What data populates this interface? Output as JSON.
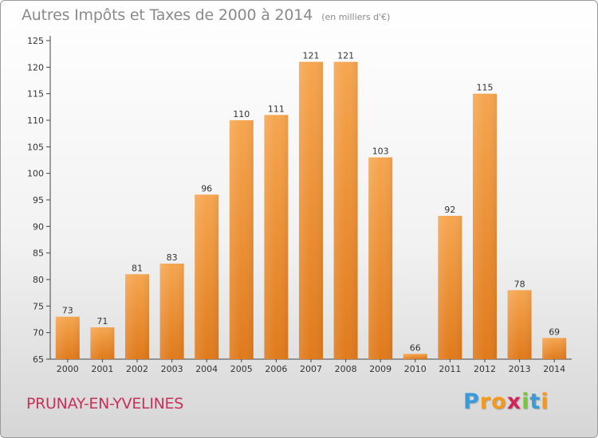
{
  "header": {
    "title": "Autres Impôts et Taxes de 2000 à 2014",
    "subtitle": "(en milliers d'€)"
  },
  "footer": {
    "commune": "PRUNAY-EN-YVELINES",
    "logo": {
      "letters": [
        "P",
        "r",
        "o",
        "x",
        "i",
        "t",
        "i"
      ],
      "colors": [
        "#3a9bd8",
        "#f39a1e",
        "#f39a1e",
        "#d4225a",
        "#7cc243",
        "#3a9bd8",
        "#f39a1e"
      ]
    }
  },
  "chart_data": {
    "type": "bar",
    "categories": [
      "2000",
      "2001",
      "2002",
      "2003",
      "2004",
      "2005",
      "2006",
      "2007",
      "2008",
      "2009",
      "2010",
      "2011",
      "2012",
      "2013",
      "2014"
    ],
    "values": [
      73,
      71,
      81,
      83,
      96,
      110,
      111,
      121,
      121,
      103,
      66,
      92,
      115,
      78,
      69
    ],
    "ylim": [
      65,
      125
    ],
    "yticks": [
      65,
      70,
      75,
      80,
      85,
      90,
      95,
      100,
      105,
      110,
      115,
      120,
      125
    ],
    "grid": false,
    "bar_color": "#f0902e",
    "xlabel": "",
    "ylabel": ""
  }
}
